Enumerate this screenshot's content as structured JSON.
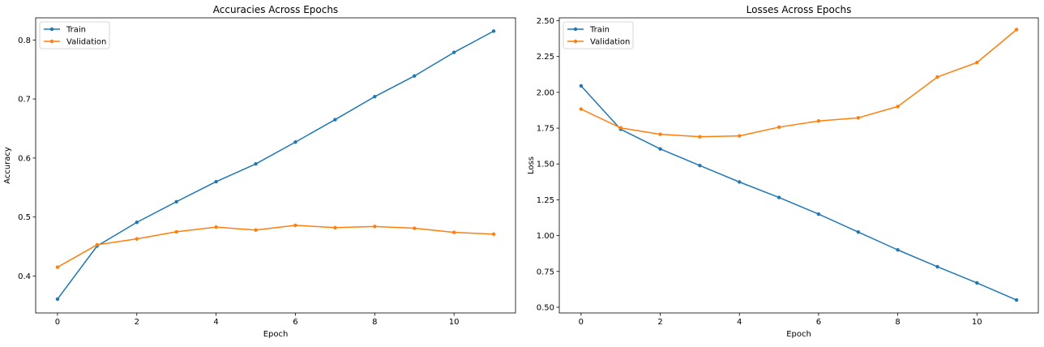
{
  "colors": {
    "train": "#1f77b4",
    "validation": "#ff7f0e"
  },
  "chart_data": [
    {
      "type": "line",
      "title": "Accuracies Across Epochs",
      "xlabel": "Epoch",
      "ylabel": "Accuracy",
      "x": [
        0,
        1,
        2,
        3,
        4,
        5,
        6,
        7,
        8,
        9,
        10,
        11
      ],
      "xlim": [
        -0.55,
        11.55
      ],
      "ylim": [
        0.3375,
        0.8375
      ],
      "xticks": [
        0,
        2,
        4,
        6,
        8,
        10
      ],
      "yticks": [
        0.4,
        0.5,
        0.6,
        0.7,
        0.8
      ],
      "ytick_labels": [
        "0.4",
        "0.5",
        "0.6",
        "0.7",
        "0.8"
      ],
      "legend": "top-left",
      "grid": false,
      "series": [
        {
          "name": "Train",
          "color_key": "train",
          "values": [
            0.361,
            0.451,
            0.491,
            0.526,
            0.56,
            0.59,
            0.627,
            0.665,
            0.704,
            0.739,
            0.779,
            0.815
          ]
        },
        {
          "name": "Validation",
          "color_key": "validation",
          "values": [
            0.415,
            0.453,
            0.463,
            0.475,
            0.483,
            0.478,
            0.486,
            0.482,
            0.484,
            0.481,
            0.474,
            0.471
          ]
        }
      ]
    },
    {
      "type": "line",
      "title": "Losses Across Epochs",
      "xlabel": "Epoch",
      "ylabel": "Loss",
      "x": [
        0,
        1,
        2,
        3,
        4,
        5,
        6,
        7,
        8,
        9,
        10,
        11
      ],
      "xlim": [
        -0.55,
        11.55
      ],
      "ylim": [
        0.46,
        2.52
      ],
      "xticks": [
        0,
        2,
        4,
        6,
        8,
        10
      ],
      "yticks": [
        0.5,
        0.75,
        1.0,
        1.25,
        1.5,
        1.75,
        2.0,
        2.25,
        2.5
      ],
      "ytick_labels": [
        "0.50",
        "0.75",
        "1.00",
        "1.25",
        "1.50",
        "1.75",
        "2.00",
        "2.25",
        "2.50"
      ],
      "legend": "top-left",
      "grid": false,
      "series": [
        {
          "name": "Train",
          "color_key": "train",
          "values": [
            2.045,
            1.742,
            1.605,
            1.489,
            1.374,
            1.266,
            1.15,
            1.025,
            0.9,
            0.783,
            0.67,
            0.55
          ]
        },
        {
          "name": "Validation",
          "color_key": "validation",
          "values": [
            1.883,
            1.752,
            1.707,
            1.69,
            1.696,
            1.757,
            1.8,
            1.822,
            1.901,
            2.107,
            2.208,
            2.438
          ]
        }
      ]
    }
  ]
}
